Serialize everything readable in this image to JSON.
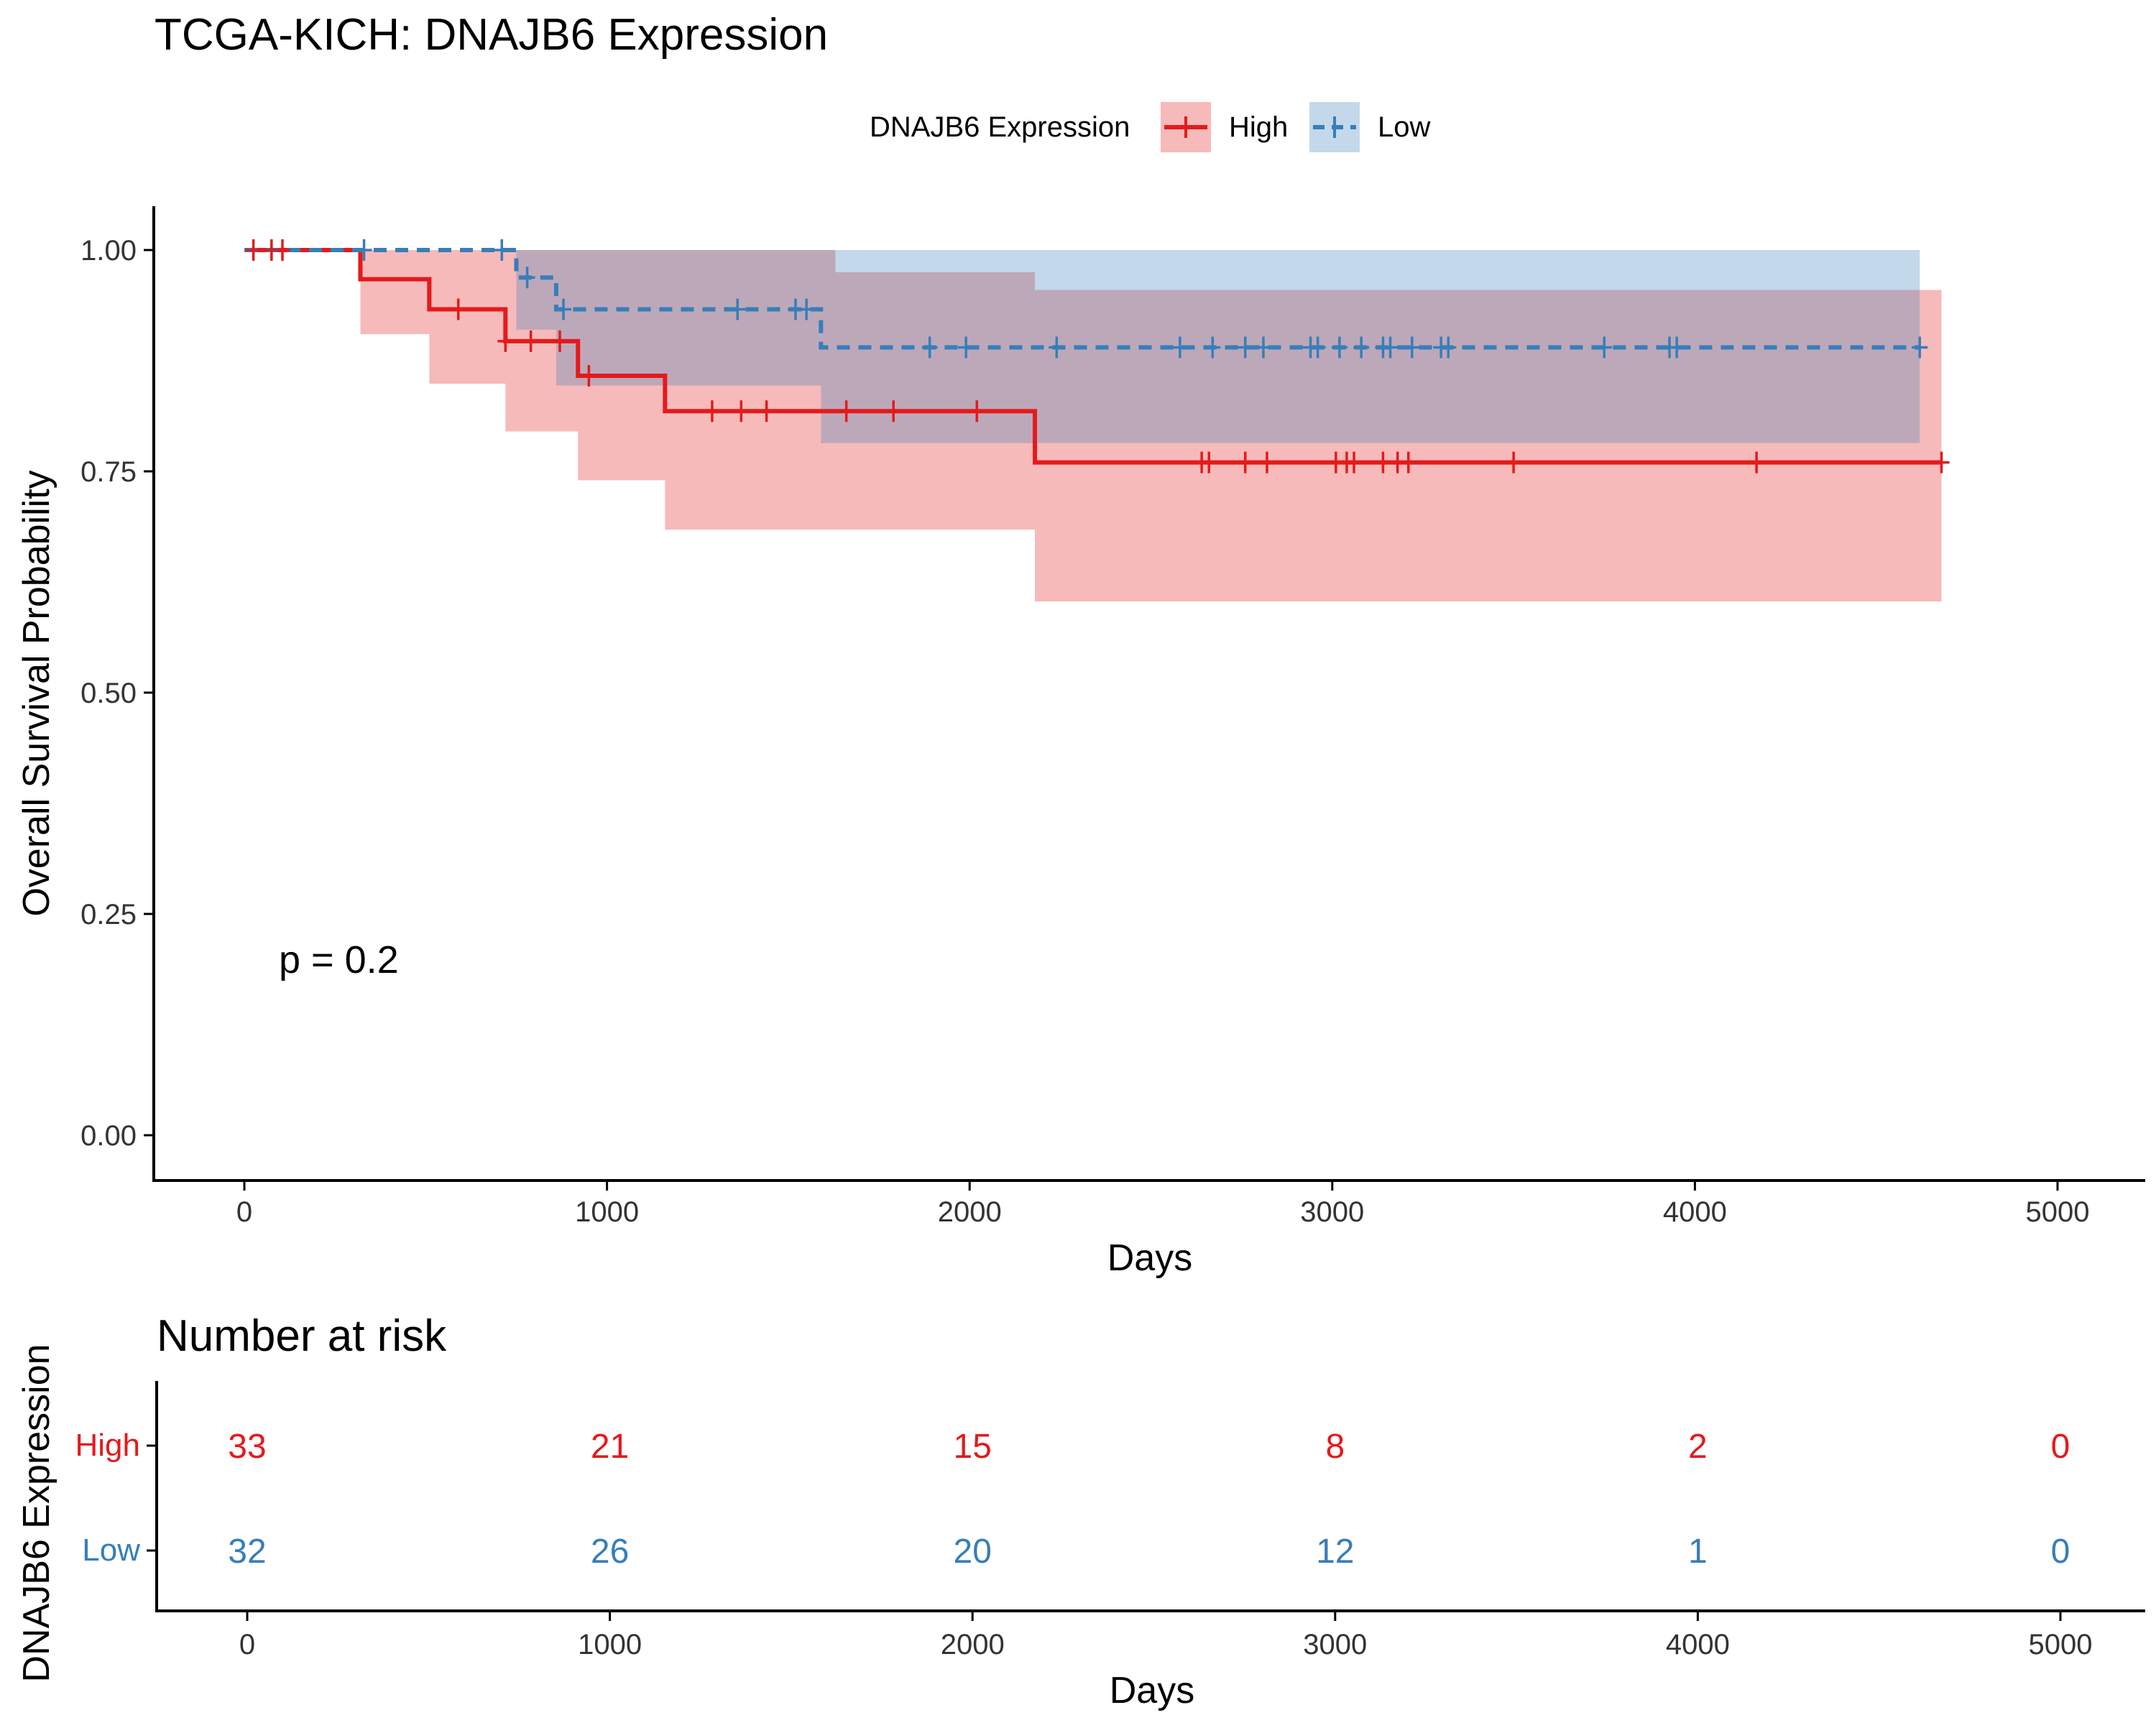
{
  "chart_data": [
    {
      "type": "line",
      "subtype": "kaplan-meier",
      "title": "TCGA-KICH: DNAJB6 Expression",
      "xlabel": "Days",
      "ylabel": "Overall Survival Probability",
      "xlim": [
        -250,
        5250
      ],
      "ylim": [
        -0.05,
        1.05
      ],
      "xticks": [
        0,
        1000,
        2000,
        3000,
        4000,
        5000
      ],
      "xtick_labels": [
        "0",
        "1000",
        "2000",
        "3000",
        "4000",
        "5000"
      ],
      "yticks": [
        0,
        0.25,
        0.5,
        0.75,
        1.0
      ],
      "ytick_labels": [
        "0.00",
        "0.25",
        "0.50",
        "0.75",
        "1.00"
      ],
      "grid": false,
      "legend": {
        "title": "DNAJB6 Expression",
        "position": "top"
      },
      "annotation": "p = 0.2",
      "annotation_pos": [
        100,
        0.2
      ],
      "series": [
        {
          "name": "High",
          "color": "#E41A1C",
          "dash": "solid",
          "steps": [
            [
              0,
              1.0
            ],
            [
              320,
              0.967
            ],
            [
              510,
              0.933
            ],
            [
              720,
              0.897
            ],
            [
              920,
              0.858
            ],
            [
              1160,
              0.818
            ],
            [
              2180,
              0.76
            ],
            [
              4680,
              0.76
            ]
          ],
          "ci_lower": [
            [
              0,
              1.0
            ],
            [
              320,
              0.905
            ],
            [
              510,
              0.849
            ],
            [
              720,
              0.795
            ],
            [
              920,
              0.74
            ],
            [
              1160,
              0.684
            ],
            [
              2180,
              0.603
            ],
            [
              4680,
              0.603
            ]
          ],
          "ci_upper": [
            [
              0,
              1.0
            ],
            [
              320,
              1.0
            ],
            [
              510,
              1.0
            ],
            [
              720,
              1.0
            ],
            [
              920,
              1.0
            ],
            [
              1160,
              1.0
            ],
            [
              1630,
              0.975
            ],
            [
              2180,
              0.955
            ],
            [
              4680,
              0.955
            ]
          ],
          "censor_times": [
            25,
            75,
            105,
            590,
            720,
            790,
            870,
            950,
            1290,
            1370,
            1440,
            1660,
            1790,
            2020,
            2640,
            2660,
            2760,
            2820,
            3010,
            3040,
            3060,
            3140,
            3180,
            3210,
            3500,
            4170,
            4680
          ]
        },
        {
          "name": "Low",
          "color": "#377EB8",
          "dash": "dashed",
          "steps": [
            [
              0,
              1.0
            ],
            [
              750,
              0.969
            ],
            [
              860,
              0.933
            ],
            [
              1590,
              0.89
            ],
            [
              4620,
              0.89
            ]
          ],
          "ci_lower": [
            [
              0,
              1.0
            ],
            [
              750,
              0.91
            ],
            [
              860,
              0.847
            ],
            [
              1590,
              0.782
            ],
            [
              4620,
              0.782
            ]
          ],
          "ci_upper": [
            [
              0,
              1.0
            ],
            [
              4620,
              1.0
            ]
          ],
          "censor_times": [
            330,
            710,
            780,
            880,
            1360,
            1520,
            1550,
            1890,
            1990,
            2240,
            2580,
            2670,
            2760,
            2810,
            2940,
            2960,
            3020,
            3080,
            3140,
            3160,
            3220,
            3300,
            3320,
            3750,
            3930,
            3950,
            4620
          ]
        }
      ]
    },
    {
      "type": "table",
      "title": "Number at risk",
      "xlabel": "Days",
      "ylabel": "DNAJB6 Expression",
      "xlim": [
        -250,
        5250
      ],
      "xticks": [
        0,
        1000,
        2000,
        3000,
        4000,
        5000
      ],
      "xtick_labels": [
        "0",
        "1000",
        "2000",
        "3000",
        "4000",
        "5000"
      ],
      "rows": [
        {
          "name": "High",
          "color": "#E41A1C",
          "values": [
            33,
            21,
            15,
            8,
            2,
            0
          ]
        },
        {
          "name": "Low",
          "color": "#377EB8",
          "values": [
            32,
            26,
            20,
            12,
            1,
            0
          ]
        }
      ]
    }
  ]
}
